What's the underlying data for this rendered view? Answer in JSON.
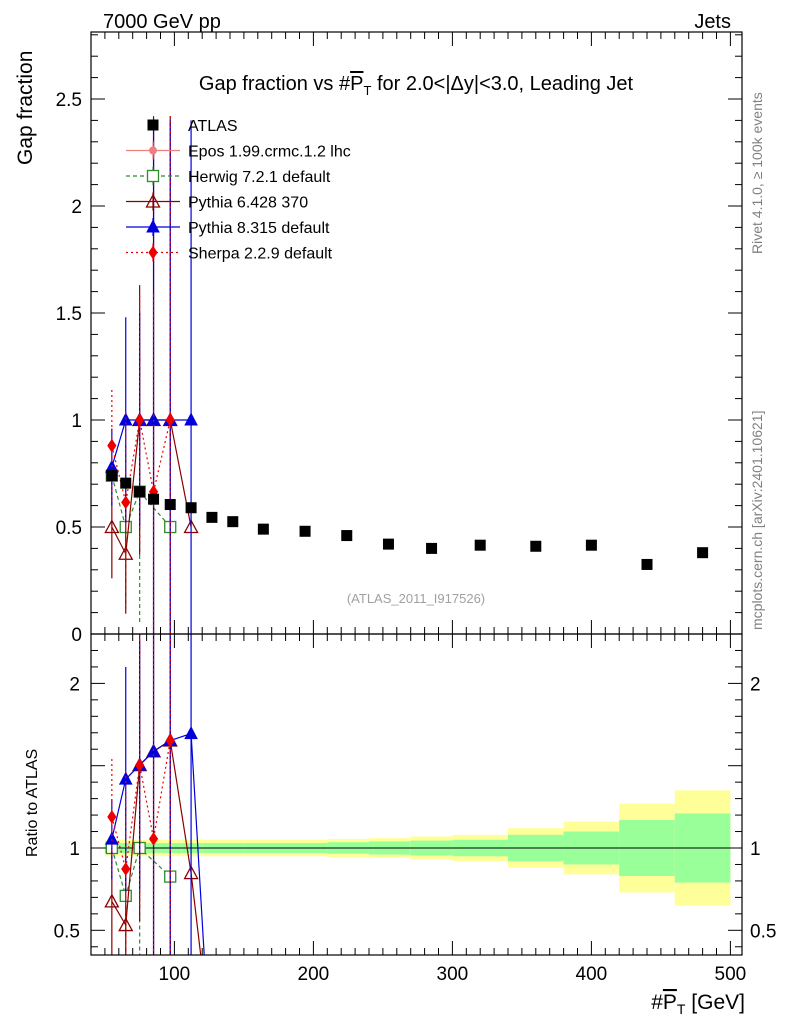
{
  "header": {
    "energy_label": "7000 GeV pp",
    "category_label": "Jets",
    "side_rivet": "Rivet 4.1.0, ≥ 100k events",
    "side_mcplots": "mcplots.cern.ch [arXiv:2401.10621]"
  },
  "chart_data": {
    "type": "scatter",
    "title": "Gap fraction vs #P̅T for 2.0<|Δy|<3.0, Leading Jet",
    "title_parts": {
      "pre": "Gap fraction vs #",
      "p": "P",
      "t": "T",
      "post": " for 2.0<|Δy|<3.0, Leading Jet"
    },
    "ylabel": "Gap fraction",
    "ratio_ylabel": "Ratio to ATLAS",
    "xlabel_parts": {
      "pre": "#",
      "p": "P",
      "t": "T",
      "post": " [GeV]"
    },
    "watermark": "(ATLAS_2011_I917526)",
    "xlim": [
      40,
      500
    ],
    "ylim": [
      0,
      2.8
    ],
    "ratio_ylim": [
      0.35,
      2.3
    ],
    "x_ticks": [
      100,
      200,
      300,
      400,
      500
    ],
    "y_ticks": [
      {
        "v": 0.5,
        "label": "0.5"
      },
      {
        "v": 1,
        "label": "1"
      },
      {
        "v": 1.5,
        "label": "1.5"
      },
      {
        "v": 2,
        "label": "2"
      },
      {
        "v": 2.5,
        "label": "2.5"
      },
      {
        "v": 0,
        "label": "0"
      }
    ],
    "ratio_y_ticks": [
      {
        "v": 0.5,
        "label": "0.5"
      },
      {
        "v": 1,
        "label": "1"
      },
      {
        "v": 2,
        "label": "2"
      }
    ],
    "data_series": {
      "name": "ATLAS",
      "x": [
        55,
        65,
        75,
        85,
        97,
        112,
        127,
        142,
        164,
        194,
        224,
        254,
        285,
        320,
        360,
        400,
        440,
        480
      ],
      "y": [
        0.74,
        0.705,
        0.665,
        0.63,
        0.605,
        0.59,
        0.545,
        0.525,
        0.49,
        0.48,
        0.46,
        0.42,
        0.4,
        0.415,
        0.41,
        0.415,
        0.325,
        0.38
      ],
      "bins": [
        [
          50,
          60
        ],
        [
          60,
          70
        ],
        [
          70,
          80
        ],
        [
          80,
          90
        ],
        [
          90,
          105
        ],
        [
          105,
          120
        ],
        [
          120,
          135
        ],
        [
          135,
          150
        ],
        [
          150,
          180
        ],
        [
          180,
          210
        ],
        [
          210,
          240
        ],
        [
          240,
          270
        ],
        [
          270,
          300
        ],
        [
          300,
          340
        ],
        [
          340,
          380
        ],
        [
          380,
          420
        ],
        [
          420,
          460
        ],
        [
          460,
          500
        ]
      ],
      "band_outer": [
        0.05,
        0.05,
        0.05,
        0.05,
        0.05,
        0.05,
        0.05,
        0.05,
        0.05,
        0.05,
        0.055,
        0.06,
        0.07,
        0.08,
        0.12,
        0.16,
        0.27,
        0.35
      ],
      "band_inner": [
        0.03,
        0.03,
        0.03,
        0.03,
        0.03,
        0.03,
        0.03,
        0.03,
        0.03,
        0.03,
        0.035,
        0.04,
        0.045,
        0.05,
        0.08,
        0.1,
        0.17,
        0.21
      ]
    },
    "mc_series": [
      {
        "name": "Epos 1.99.crmc.1.2 lhc",
        "color": "#f08080",
        "marker": "circle",
        "dash": "",
        "x": [
          55
        ],
        "y": [
          0.77
        ],
        "err": [
          0.02
        ]
      },
      {
        "name": "Herwig 7.2.1 default",
        "color": "#2e8b2e",
        "marker": "open-square",
        "dash": "4,3",
        "x": [
          55,
          65,
          75,
          97
        ],
        "y": [
          0.74,
          0.5,
          0.665,
          0.5
        ],
        "err": [
          0.02,
          0.38,
          0.62,
          0
        ]
      },
      {
        "name": "Pythia 6.428 370",
        "color": "#8b0000",
        "marker": "open-triangle",
        "dash": "",
        "x": [
          55,
          65,
          75,
          85,
          97,
          112
        ],
        "y": [
          0.5,
          0.375,
          1,
          1,
          1,
          0.5
        ],
        "err": [
          0.24,
          0.28,
          0.63,
          1.42,
          1.42,
          0
        ]
      },
      {
        "name": "Pythia 8.315 default",
        "color": "#0000dd",
        "marker": "triangle",
        "dash": "",
        "x": [
          55,
          65,
          75,
          85,
          97,
          112
        ],
        "y": [
          0.78,
          1,
          1,
          1,
          1,
          1
        ],
        "err": [
          0.18,
          0.48,
          0.5,
          1.4,
          1.4,
          1.4
        ]
      },
      {
        "name": "Sherpa 2.2.9 default",
        "color": "#ee0000",
        "marker": "diamond",
        "dash": "2,3",
        "x": [
          55,
          65,
          75,
          85,
          97
        ],
        "y": [
          0.88,
          0.615,
          1,
          0.665,
          1
        ],
        "err": [
          0.26,
          0.42,
          0.58,
          0.92,
          1.42
        ]
      }
    ]
  }
}
